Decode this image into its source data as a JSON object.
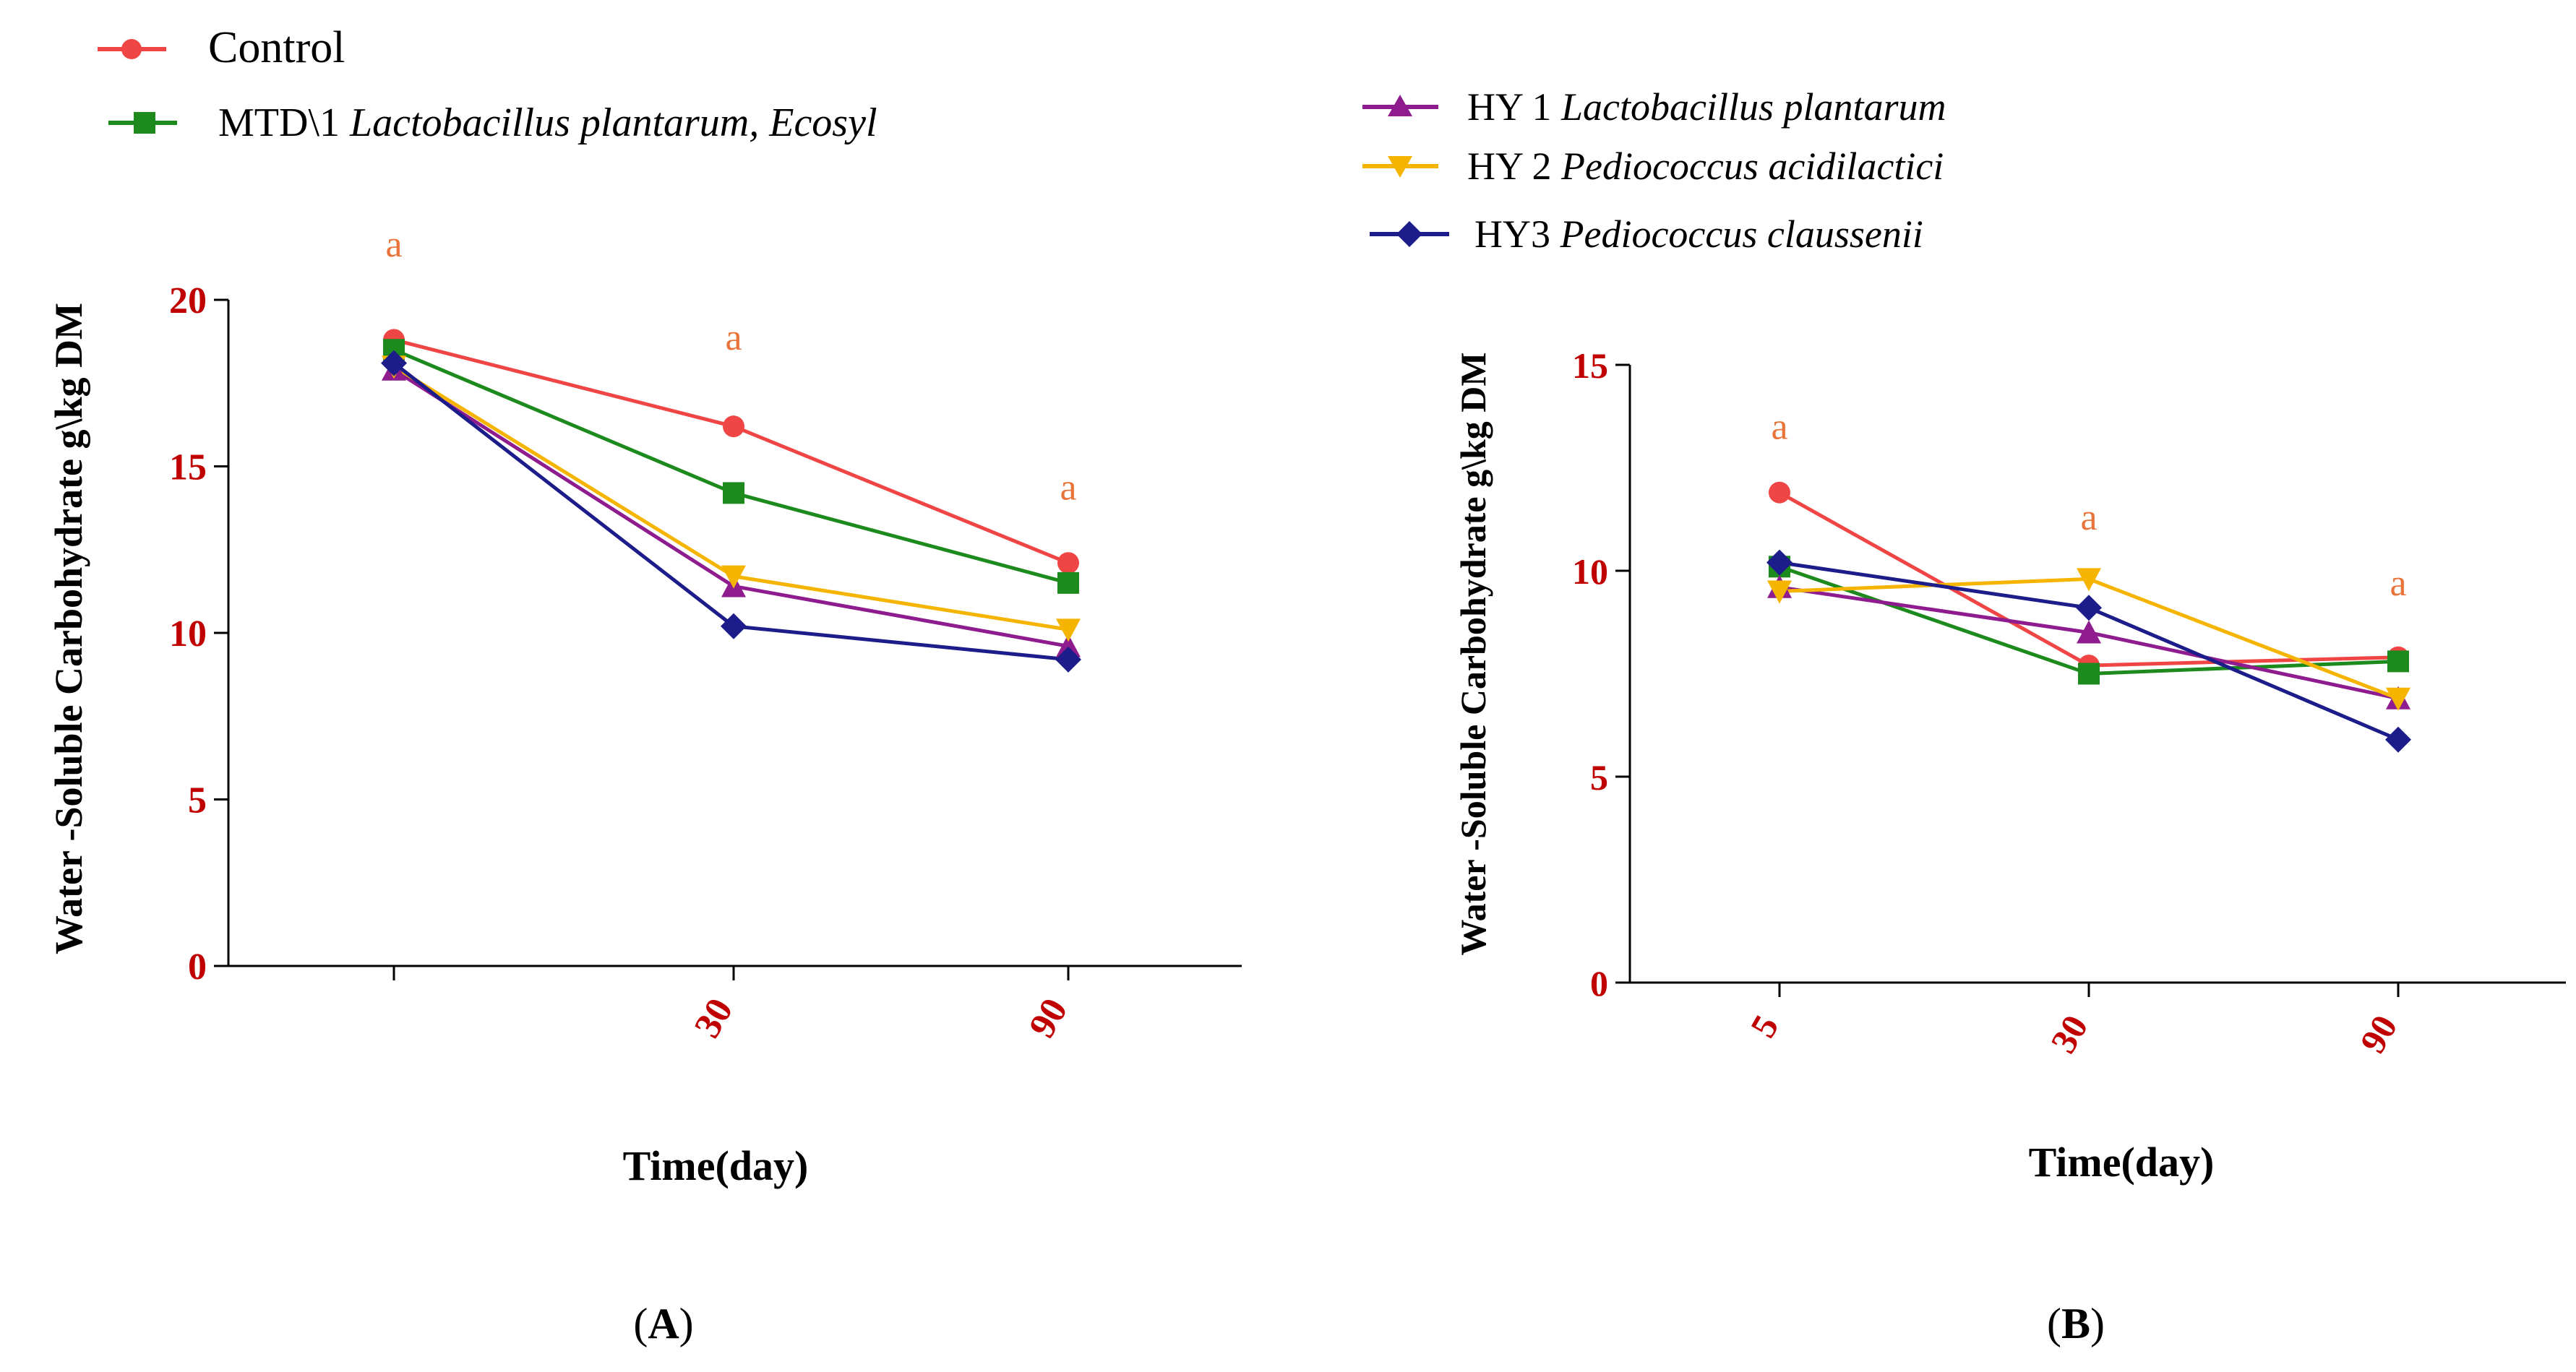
{
  "legend": {
    "control": "Control",
    "mtd_prefix": "MTD\\1 ",
    "mtd_species": "Lactobacillus plantarum, Ecosyl",
    "hy1_prefix": "HY 1 ",
    "hy1_species": "Lactobacillus plantarum",
    "hy2_prefix": "HY 2 ",
    "hy2_species": "Pediococcus acidilactici",
    "hy3_prefix": "HY3 ",
    "hy3_species": "Pediococcus claussenii"
  },
  "colors": {
    "control": "#f04545",
    "mtd": "#1c8a1c",
    "hy1": "#8e1c8e",
    "hy2": "#f5b400",
    "hy3": "#1c1c8a",
    "tick_label": "#c00000",
    "annotation": "#e8743b",
    "axis": "#000000"
  },
  "chart_data": [
    {
      "id": "A",
      "type": "line",
      "panel_label": "(A)",
      "panel_letter": "A",
      "title": "",
      "xlabel": "Time(day)",
      "ylabel": "Water -Soluble Carbohydrate g\\kg DM",
      "ylim": [
        0,
        20
      ],
      "yticks": [
        0,
        5,
        10,
        15,
        20
      ],
      "categories": [
        "",
        "30",
        "90"
      ],
      "series": [
        {
          "key": "control",
          "name": "Control",
          "marker": "circle",
          "values": [
            18.8,
            16.2,
            12.1
          ]
        },
        {
          "key": "mtd",
          "name": "MTD\\1 Lactobacillus plantarum, Ecosyl",
          "marker": "square",
          "values": [
            18.5,
            14.2,
            11.5
          ]
        },
        {
          "key": "hy1",
          "name": "HY 1 Lactobacillus plantarum",
          "marker": "triangle-up",
          "values": [
            17.9,
            11.4,
            9.6
          ]
        },
        {
          "key": "hy2",
          "name": "HY 2 Pediococcus acidilactici",
          "marker": "triangle-down",
          "values": [
            18.0,
            11.7,
            10.1
          ]
        },
        {
          "key": "hy3",
          "name": "HY3 Pediococcus claussenii",
          "marker": "diamond",
          "values": [
            18.1,
            10.2,
            9.2
          ]
        }
      ],
      "annotations": [
        {
          "category_index": 0,
          "y": 21.3,
          "text": "a"
        },
        {
          "category_index": 1,
          "y": 18.5,
          "text": "a"
        },
        {
          "category_index": 2,
          "y": 14.0,
          "text": "a"
        }
      ]
    },
    {
      "id": "B",
      "type": "line",
      "panel_label": "(B)",
      "panel_letter": "B",
      "title": "",
      "xlabel": "Time(day)",
      "ylabel": "Water -Soluble Carbohydrate g\\kg DM",
      "ylim": [
        0,
        15
      ],
      "yticks": [
        0,
        5,
        10,
        15
      ],
      "categories": [
        "5",
        "30",
        "90"
      ],
      "series": [
        {
          "key": "control",
          "name": "Control",
          "marker": "circle",
          "values": [
            11.9,
            7.7,
            7.9
          ]
        },
        {
          "key": "mtd",
          "name": "MTD\\1 Lactobacillus plantarum, Ecosyl",
          "marker": "square",
          "values": [
            10.1,
            7.5,
            7.8
          ]
        },
        {
          "key": "hy1",
          "name": "HY 1 Lactobacillus plantarum",
          "marker": "triangle-up",
          "values": [
            9.6,
            8.5,
            6.9
          ]
        },
        {
          "key": "hy2",
          "name": "HY 2 Pediococcus acidilactici",
          "marker": "triangle-down",
          "values": [
            9.5,
            9.8,
            6.9
          ]
        },
        {
          "key": "hy3",
          "name": "HY3 Pediococcus claussenii",
          "marker": "diamond",
          "values": [
            10.2,
            9.1,
            5.9
          ]
        }
      ],
      "annotations": [
        {
          "category_index": 0,
          "y": 13.2,
          "text": "a"
        },
        {
          "category_index": 1,
          "y": 11.0,
          "text": "a"
        },
        {
          "category_index": 2,
          "y": 9.4,
          "text": "a"
        }
      ]
    }
  ]
}
